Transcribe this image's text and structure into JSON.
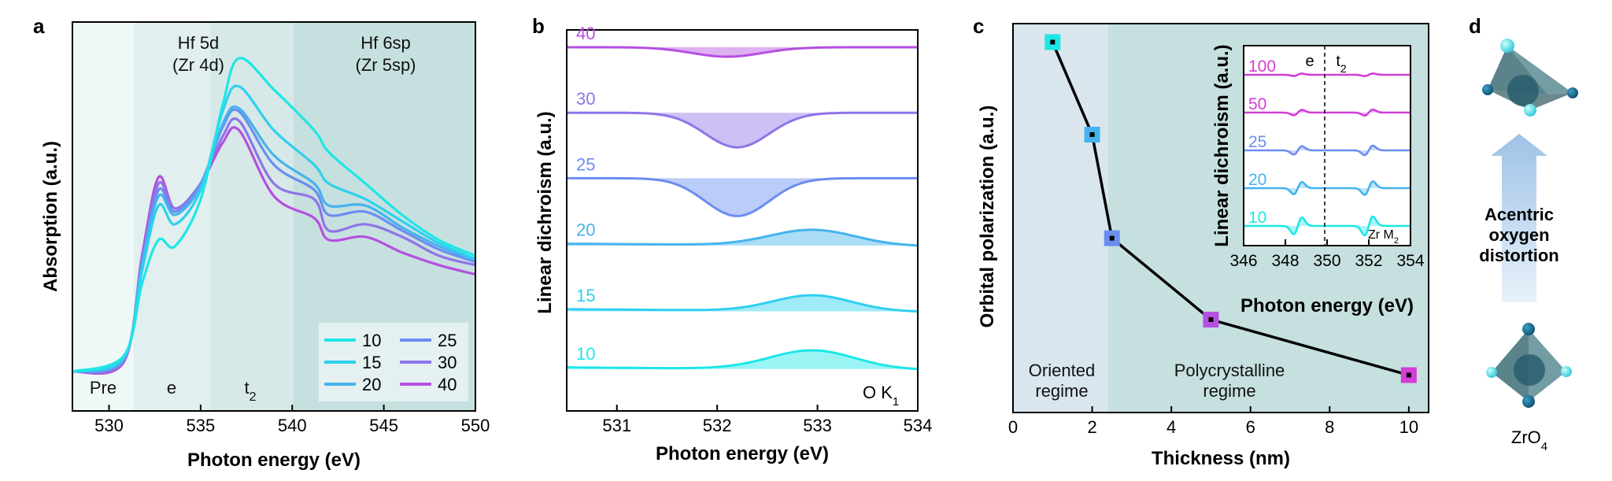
{
  "panel_labels": {
    "a": "a",
    "b": "b",
    "c": "c",
    "d": "d"
  },
  "chart_data": [
    {
      "panel": "a",
      "type": "line",
      "title": "",
      "xlabel": "Photon energy (eV)",
      "ylabel": "Absorption (a.u.)",
      "xlim": [
        528,
        550
      ],
      "ylim": [
        0,
        1.1
      ],
      "xticks": [
        "530",
        "535",
        "540",
        "545",
        "550"
      ],
      "regions": [
        "Pre",
        "e",
        "t2"
      ],
      "region_headers": {
        "hf5d": "Hf 5d",
        "zr4d": "(Zr 4d)",
        "hf6sp": "Hf 6sp",
        "zr5sp": "(Zr 5sp)"
      },
      "legend_title": "",
      "series": [
        {
          "name": "10",
          "color": "#1ee6e6"
        },
        {
          "name": "15",
          "color": "#2fd0ef"
        },
        {
          "name": "20",
          "color": "#45b3ee"
        },
        {
          "name": "25",
          "color": "#6b8df0"
        },
        {
          "name": "30",
          "color": "#8f74e8"
        },
        {
          "name": "40",
          "color": "#b54fe0"
        }
      ],
      "x_knots": [
        528,
        530.8,
        531.8,
        532.7,
        533.6,
        535,
        536.2,
        537.1,
        539,
        541.2,
        542,
        544,
        546,
        548,
        550
      ],
      "values": {
        "10": [
          0,
          0.05,
          0.28,
          0.42,
          0.4,
          0.55,
          0.85,
          1.0,
          0.9,
          0.77,
          0.7,
          0.6,
          0.5,
          0.42,
          0.37
        ],
        "15": [
          0,
          0.045,
          0.32,
          0.53,
          0.47,
          0.58,
          0.83,
          0.91,
          0.77,
          0.66,
          0.6,
          0.55,
          0.48,
          0.41,
          0.36
        ],
        "20": [
          0,
          0.04,
          0.34,
          0.56,
          0.5,
          0.59,
          0.79,
          0.84,
          0.69,
          0.6,
          0.53,
          0.53,
          0.46,
          0.4,
          0.355
        ],
        "25": [
          0,
          0.04,
          0.35,
          0.58,
          0.51,
          0.6,
          0.78,
          0.83,
          0.66,
          0.58,
          0.5,
          0.51,
          0.45,
          0.39,
          0.35
        ],
        "30": [
          0,
          0.035,
          0.36,
          0.6,
          0.52,
          0.6,
          0.75,
          0.8,
          0.6,
          0.55,
          0.45,
          0.47,
          0.43,
          0.37,
          0.34
        ],
        "40": [
          0,
          0.03,
          0.37,
          0.62,
          0.52,
          0.6,
          0.73,
          0.77,
          0.56,
          0.49,
          0.42,
          0.43,
          0.38,
          0.34,
          0.31
        ]
      }
    },
    {
      "panel": "b",
      "type": "area",
      "xlabel": "Photon energy (eV)",
      "ylabel": "Linear dichroism (a.u.)",
      "xlim": [
        530.5,
        534
      ],
      "xticks": [
        "531",
        "532",
        "533",
        "534"
      ],
      "annotation": "O K",
      "annotation_sub": "1",
      "series": [
        {
          "name": "40",
          "color": "#b54fe0",
          "baseline_frac": 0.9,
          "shape": "dip",
          "center": 532.1,
          "width": 0.5,
          "amp": -0.03
        },
        {
          "name": "30",
          "color": "#8f74e8",
          "baseline_frac": 0.72,
          "shape": "dip",
          "center": 532.2,
          "width": 0.45,
          "amp": -0.11
        },
        {
          "name": "25",
          "color": "#6b8df0",
          "baseline_frac": 0.54,
          "shape": "dip",
          "center": 532.2,
          "width": 0.45,
          "amp": -0.12
        },
        {
          "name": "20",
          "color": "#45b3ee",
          "baseline_frac": 0.36,
          "shape": "bump",
          "center": 532.95,
          "width": 0.6,
          "amp": 0.05
        },
        {
          "name": "15",
          "color": "#2fd0ef",
          "baseline_frac": 0.18,
          "shape": "bump",
          "center": 532.95,
          "width": 0.55,
          "amp": 0.05
        },
        {
          "name": "10",
          "color": "#1ee6e6",
          "baseline_frac": 0.02,
          "shape": "bump",
          "center": 532.95,
          "width": 0.6,
          "amp": 0.06
        }
      ]
    },
    {
      "panel": "c",
      "type": "line",
      "xlabel": "Thickness (nm)",
      "ylabel": "Orbital polarization (a.u.)",
      "xlim": [
        0,
        10.5
      ],
      "ylim": [
        0,
        1
      ],
      "xticks": [
        "0",
        "2",
        "4",
        "6",
        "8",
        "10"
      ],
      "regime_left_l1": "Oriented",
      "regime_left_l2": "regime",
      "regime_right_l1": "Polycrystalline",
      "regime_right_l2": "regime",
      "boundary": 2.5,
      "points": [
        {
          "x": 1,
          "y": 0.95,
          "color": "#1ee6e6"
        },
        {
          "x": 2,
          "y": 0.7,
          "color": "#45b3ee"
        },
        {
          "x": 2.5,
          "y": 0.42,
          "color": "#6b8df0"
        },
        {
          "x": 5,
          "y": 0.2,
          "color": "#b54fe0"
        },
        {
          "x": 10,
          "y": 0.05,
          "color": "#d23ed6"
        }
      ],
      "inset": {
        "type": "area",
        "xlabel": "Photon energy (eV)",
        "ylabel": "Linear dichroism (a.u.)",
        "xlim": [
          346,
          354
        ],
        "xticks": [
          "346",
          "348",
          "350",
          "352",
          "354"
        ],
        "label_e": "e",
        "label_t": "t",
        "label_t_sub": "2",
        "edge": "Zr M",
        "edge_sub": "2",
        "series": [
          {
            "name": "100",
            "color": "#d23ed6",
            "amp": 0.15
          },
          {
            "name": "50",
            "color": "#d23ed6",
            "amp": 0.35
          },
          {
            "name": "25",
            "color": "#6b8df0",
            "amp": 0.55
          },
          {
            "name": "20",
            "color": "#45b3ee",
            "amp": 0.8
          },
          {
            "name": "10",
            "color": "#1ee6e6",
            "amp": 1.1
          }
        ]
      }
    }
  ],
  "panel_d": {
    "arrow_text_l1": "Acentric",
    "arrow_text_l2": "oxygen",
    "arrow_text_l3": "distortion",
    "formula": "ZrO",
    "formula_sub": "4"
  }
}
